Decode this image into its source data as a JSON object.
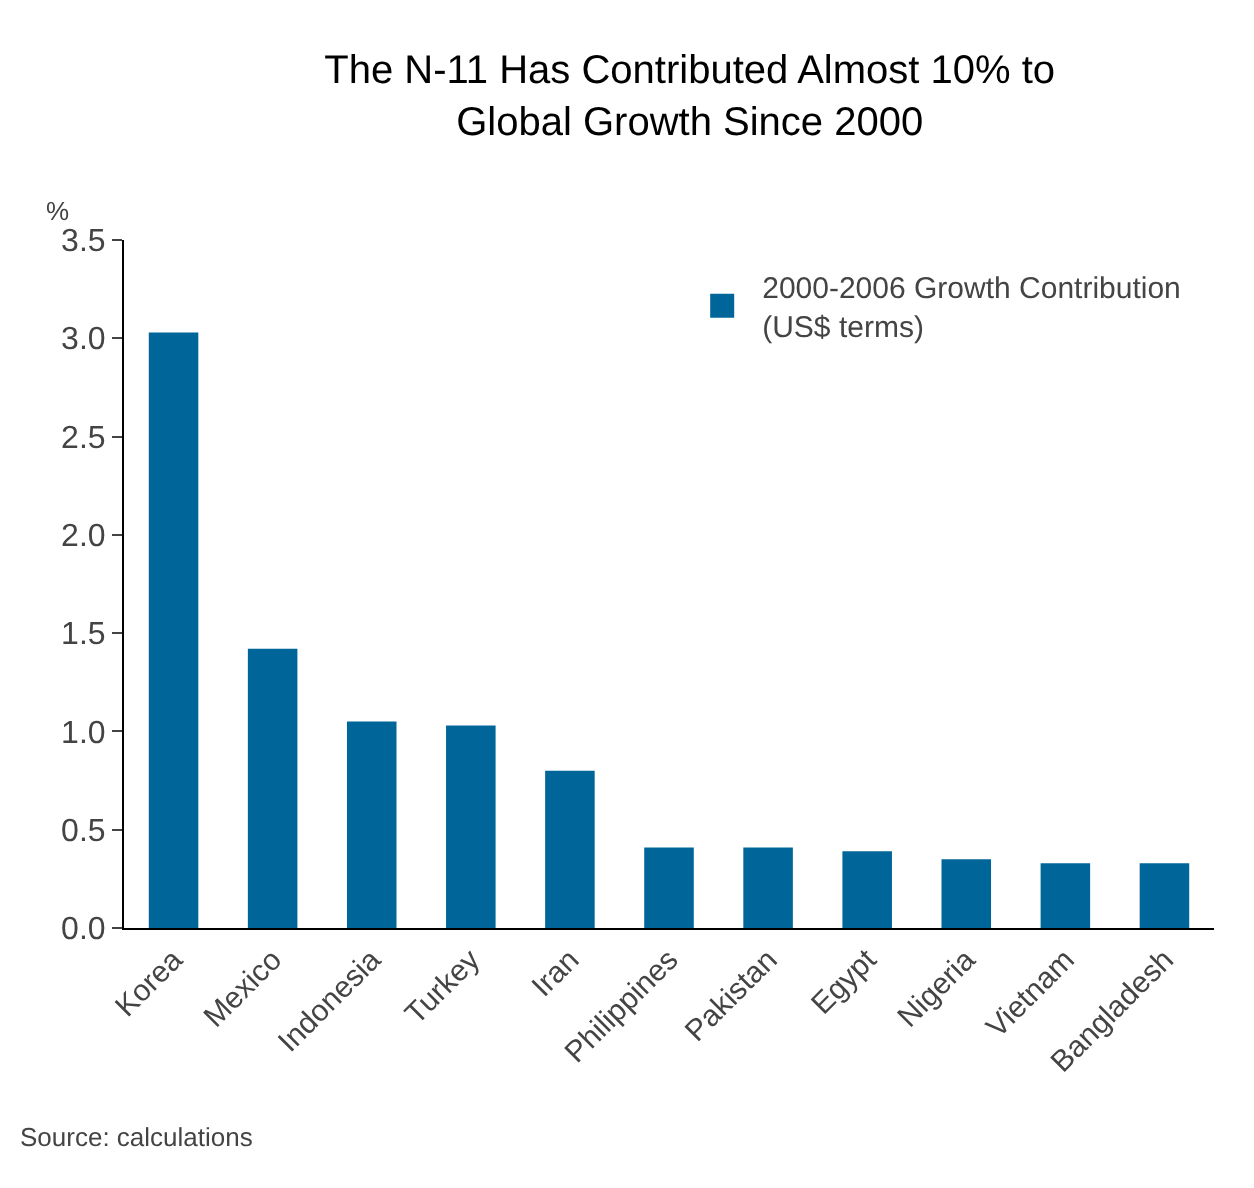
{
  "chart_data": {
    "type": "bar",
    "title": "The N-11 Has Contributed Almost 10% to Global Growth Since 2000",
    "ylabel": "%",
    "categories": [
      "Korea",
      "Mexico",
      "Indonesia",
      "Turkey",
      "Iran",
      "Philippines",
      "Pakistan",
      "Egypt",
      "Nigeria",
      "Vietnam",
      "Bangladesh"
    ],
    "series": [
      {
        "name": "2000-2006 Growth Contribution (US$ terms)",
        "color": "#006699",
        "values": [
          3.03,
          1.42,
          1.05,
          1.03,
          0.8,
          0.41,
          0.41,
          0.39,
          0.35,
          0.33,
          0.33
        ]
      }
    ],
    "ylim": [
      0,
      3.5
    ],
    "yticks": [
      {
        "value": 0,
        "label": "0.0"
      },
      0.5,
      {
        "value": 1,
        "label": "1.0"
      },
      1.5,
      {
        "value": 2,
        "label": "2.0"
      },
      2.5,
      {
        "value": 3,
        "label": "3.0"
      },
      3.5
    ],
    "grid": false,
    "legend": "top right",
    "annotations": [
      "Source: calculations"
    ]
  }
}
